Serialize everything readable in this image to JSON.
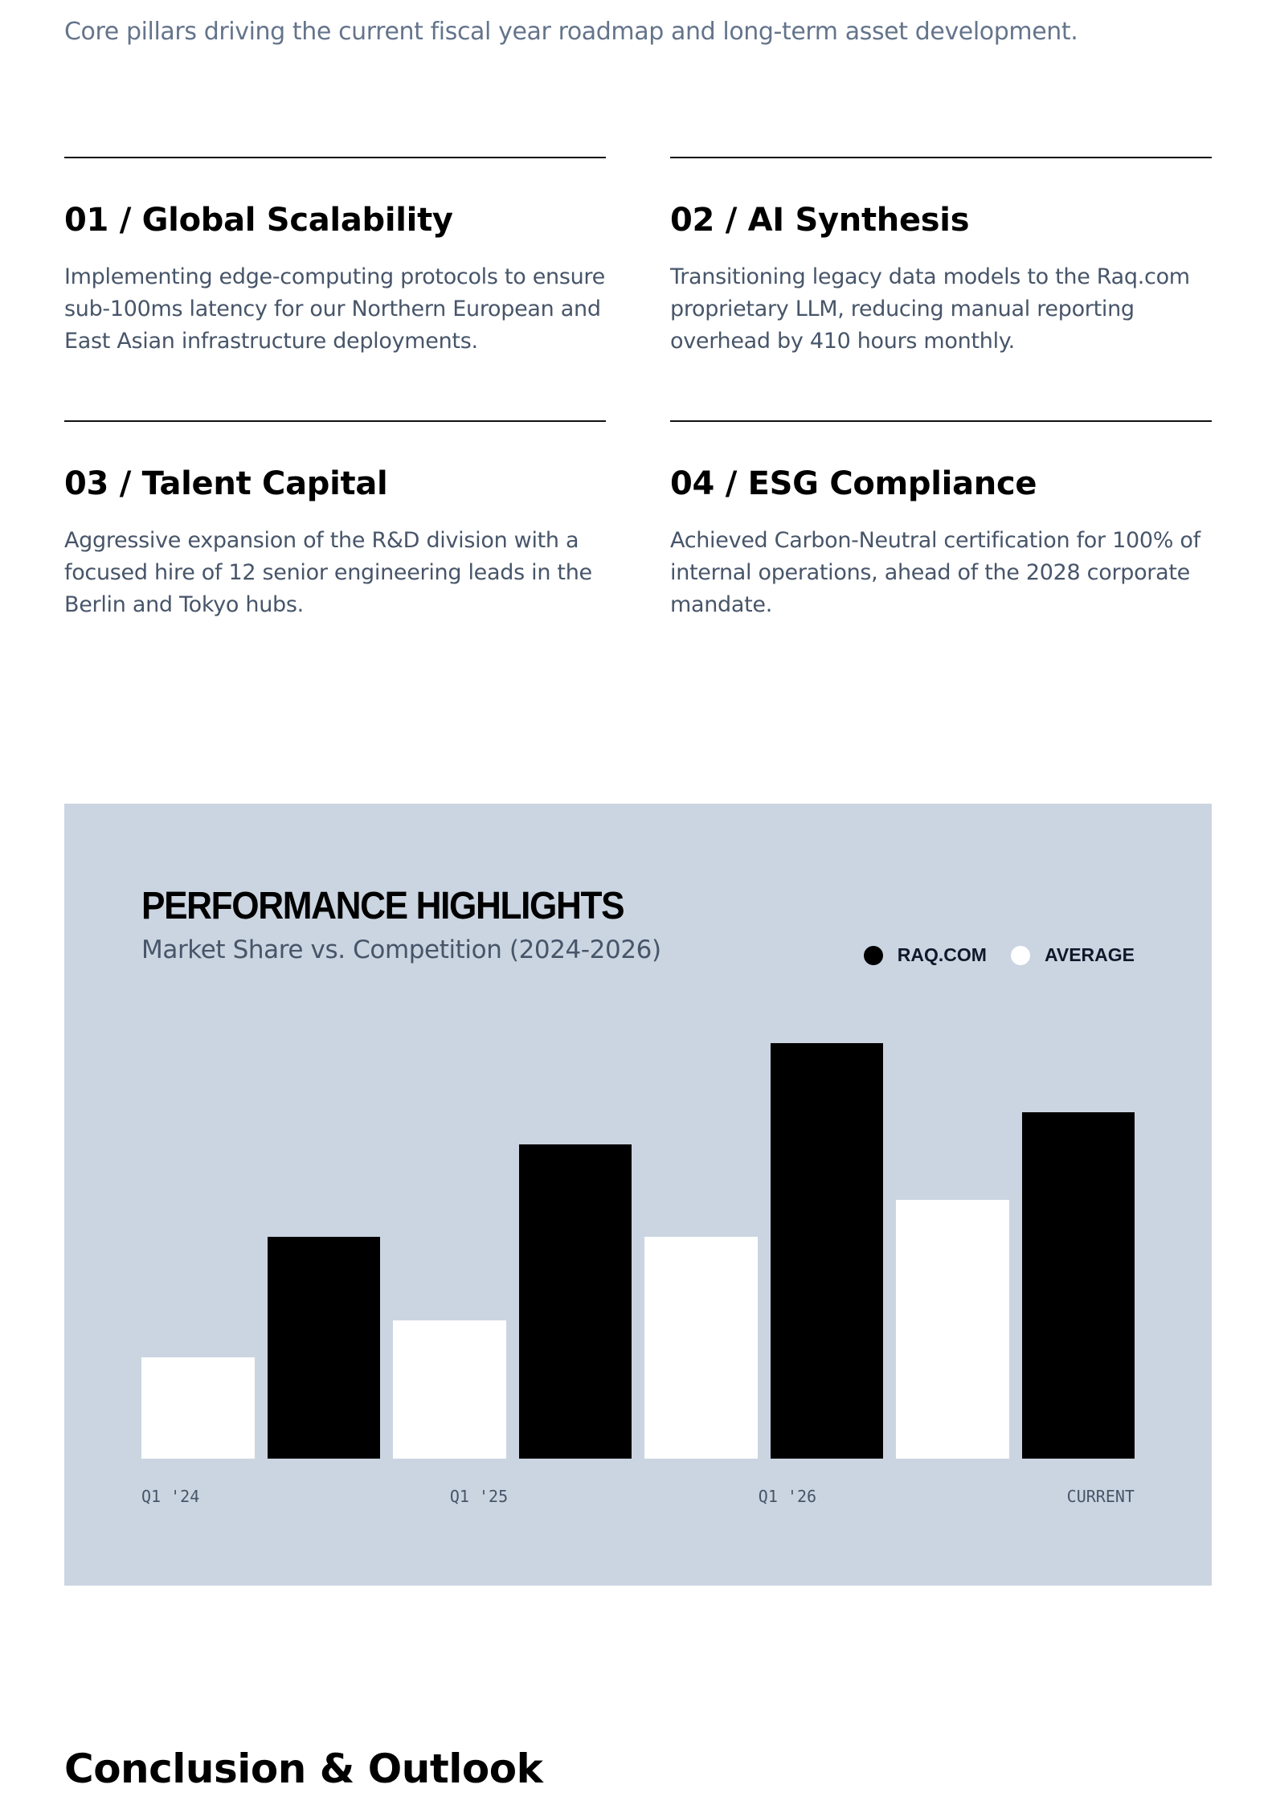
{
  "intro": "Core pillars driving the current fiscal year roadmap and long-term asset development.",
  "pillars": [
    {
      "title": "01 / Global Scalability",
      "body": "Implementing edge-computing protocols to ensure sub-100ms latency for our Northern European and East Asian infrastructure deployments."
    },
    {
      "title": "02 / AI Synthesis",
      "body": "Transitioning legacy data models to the Raq.com proprietary LLM, reducing manual reporting overhead by 410 hours monthly."
    },
    {
      "title": "03 / Talent Capital",
      "body": "Aggressive expansion of the R&D division with a focused hire of 12 senior engineering leads in the Berlin and Tokyo hubs."
    },
    {
      "title": "04 / ESG Compliance",
      "body": "Achieved Carbon-Neutral certification for 100% of internal operations, ahead of the 2028 corporate mandate."
    }
  ],
  "panel": {
    "title": "PERFORMANCE HIGHLIGHTS",
    "subtitle": "Market Share vs. Competition (2024-2026)",
    "legend": [
      {
        "label": "RAQ.COM",
        "color": "#000000"
      },
      {
        "label": "AVERAGE",
        "color": "#ffffff"
      }
    ],
    "x_labels": [
      "Q1 '24",
      "Q1 '25",
      "Q1 '26",
      "CURRENT"
    ]
  },
  "chart_data": {
    "type": "bar",
    "title": "PERFORMANCE HIGHLIGHTS",
    "subtitle": "Market Share vs. Competition (2024-2026)",
    "categories": [
      "Q1 '24",
      "Q1 '25",
      "Q1 '26",
      "CURRENT"
    ],
    "series": [
      {
        "name": "AVERAGE",
        "color": "#ffffff",
        "values": [
          22,
          30,
          48,
          56
        ]
      },
      {
        "name": "RAQ.COM",
        "color": "#000000",
        "values": [
          48,
          68,
          90,
          75
        ]
      }
    ],
    "bar_order": [
      "AVERAGE",
      "RAQ.COM"
    ],
    "xlabel": "",
    "ylabel": "",
    "ylim": [
      0,
      100
    ],
    "grid": false,
    "legend_position": "top-right"
  },
  "conclusion_heading": "Conclusion & Outlook"
}
